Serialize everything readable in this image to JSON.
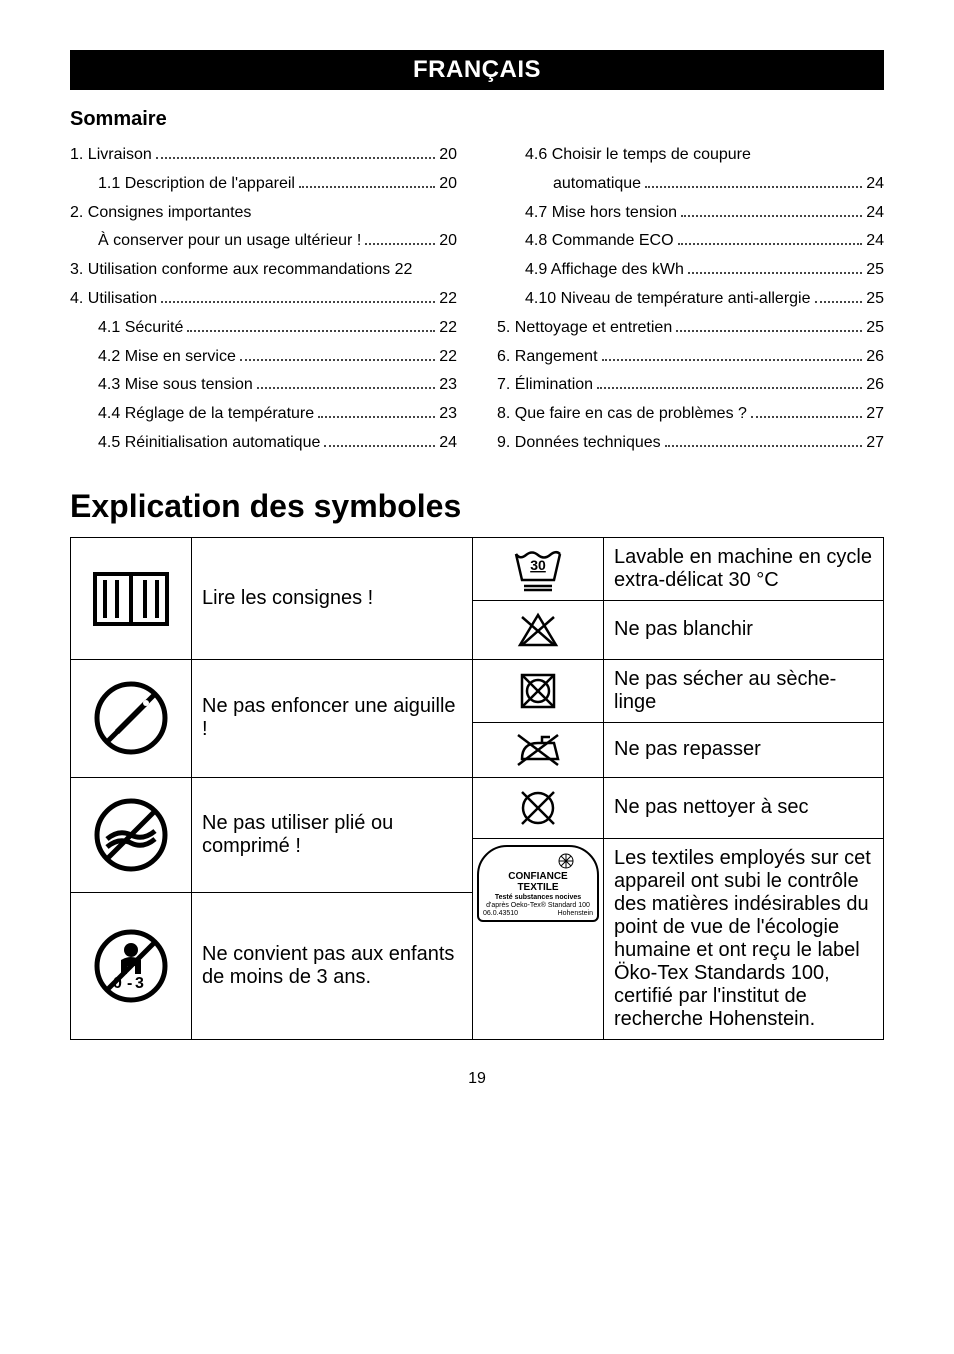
{
  "header": {
    "title": "FRANÇAIS"
  },
  "sommaire": {
    "title": "Sommaire",
    "left": [
      {
        "text": "1. Livraison",
        "page": "20",
        "indent": false
      },
      {
        "text": "1.1 Description de l'appareil",
        "page": "20",
        "indent": true
      },
      {
        "text": "2. Consignes importantes",
        "page": "",
        "indent": false
      },
      {
        "text": "À conserver pour un usage ultérieur !",
        "page": "20",
        "indent": true
      },
      {
        "text": "3. Utilisation conforme aux recommandations",
        "page": "22",
        "indent": false,
        "tight": true
      },
      {
        "text": "4. Utilisation",
        "page": "22",
        "indent": false
      },
      {
        "text": "4.1 Sécurité",
        "page": "22",
        "indent": true
      },
      {
        "text": "4.2 Mise en service",
        "page": "22",
        "indent": true
      },
      {
        "text": "4.3 Mise sous tension",
        "page": "23",
        "indent": true
      },
      {
        "text": "4.4 Réglage de la température",
        "page": "23",
        "indent": true
      },
      {
        "text": "4.5 Réinitialisation automatique",
        "page": "24",
        "indent": true
      }
    ],
    "right": [
      {
        "text": "4.6 Choisir le temps de coupure",
        "page": "",
        "indent": true
      },
      {
        "text": "automatique",
        "page": "24",
        "indent": true,
        "extra_indent": true
      },
      {
        "text": "4.7 Mise hors tension",
        "page": "24",
        "indent": true
      },
      {
        "text": "4.8 Commande ECO",
        "page": "24",
        "indent": true
      },
      {
        "text": "4.9 Affichage des kWh",
        "page": "25",
        "indent": true
      },
      {
        "text": "4.10 Niveau de température anti-allergie",
        "page": "25",
        "indent": true
      },
      {
        "text": "5. Nettoyage et entretien",
        "page": "25",
        "indent": false
      },
      {
        "text": "6. Rangement",
        "page": "26",
        "indent": false
      },
      {
        "text": "7. Élimination",
        "page": "26",
        "indent": false
      },
      {
        "text": "8. Que faire en cas de problèmes ?",
        "page": "27",
        "indent": false
      },
      {
        "text": "9. Données techniques",
        "page": "27",
        "indent": false
      }
    ]
  },
  "section": {
    "title": "Explication des symboles"
  },
  "table": {
    "rows_left": [
      {
        "icon": "manual",
        "text": "Lire les consignes !"
      },
      {
        "icon": "no-needle",
        "text": "Ne pas enfoncer une aiguille !"
      },
      {
        "icon": "no-fold",
        "text": "Ne pas utiliser plié ou comprimé !"
      },
      {
        "icon": "no-03",
        "text": "Ne convient pas aux enfants de moins de 3 ans."
      }
    ],
    "rows_right": [
      {
        "icon": "wash30",
        "text": "Lavable en machine en cycle extra-délicat 30 °C"
      },
      {
        "icon": "no-bleach",
        "text": "Ne pas blanchir"
      },
      {
        "icon": "no-tumble",
        "text": "Ne pas sécher au sèche-linge"
      },
      {
        "icon": "no-iron",
        "text": "Ne pas repasser"
      },
      {
        "icon": "no-dryclean",
        "text": "Ne pas nettoyer à sec"
      },
      {
        "icon": "oeko",
        "text": "Les textiles employés sur cet appareil ont subi le contrôle des matières indésirables du point de vue de l'écologie humaine et ont reçu le label Öko-Tex Standards 100, certifié par l'institut de recherche Hohen­stein."
      }
    ],
    "oeko": {
      "line1": "CONFIANCE",
      "line2": "TEXTILE",
      "line3": "Testé substances nocives",
      "line4": "d'après Oeko-Tex® Standard 100",
      "line5a": "06.0.43510",
      "line5b": "Hohenstein"
    }
  },
  "footer": {
    "page": "19"
  },
  "colors": {
    "black": "#000000",
    "white": "#ffffff"
  }
}
